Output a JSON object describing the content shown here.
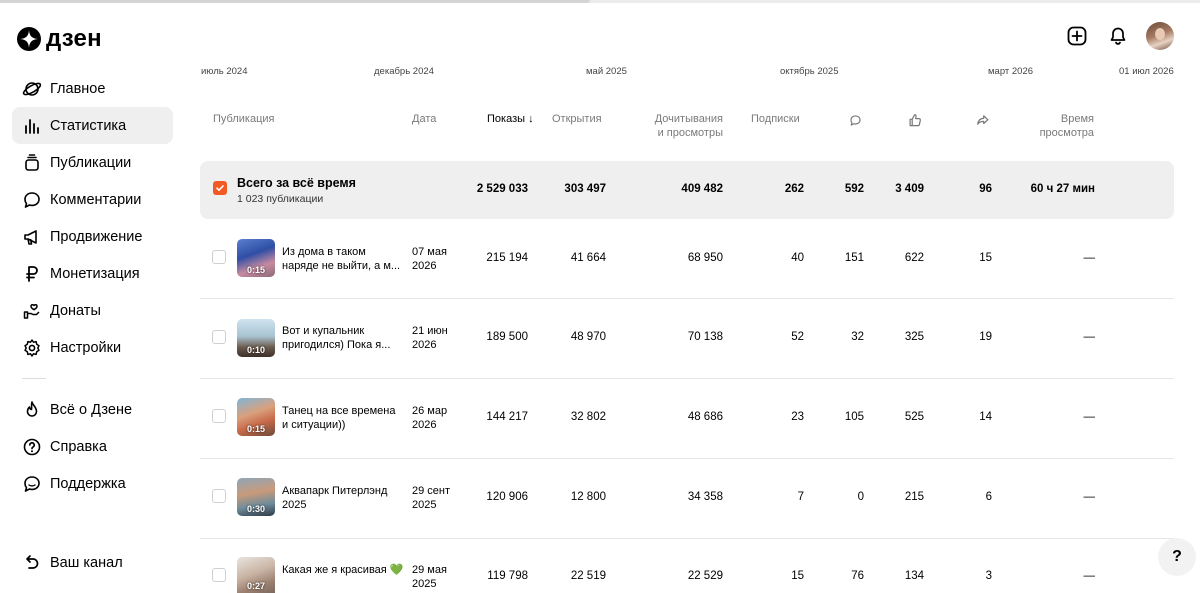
{
  "brand": {
    "name": "дзен"
  },
  "sidebar": {
    "items": [
      {
        "label": "Главное",
        "icon": "planet-icon"
      },
      {
        "label": "Статистика",
        "icon": "bar-chart-icon",
        "active": true
      },
      {
        "label": "Публикации",
        "icon": "publications-icon"
      },
      {
        "label": "Комментарии",
        "icon": "comment-icon"
      },
      {
        "label": "Продвижение",
        "icon": "megaphone-icon"
      },
      {
        "label": "Монетизация",
        "icon": "ruble-icon"
      },
      {
        "label": "Донаты",
        "icon": "donate-icon"
      },
      {
        "label": "Настройки",
        "icon": "gear-icon"
      }
    ],
    "secondary": [
      {
        "label": "Всё о Дзене",
        "icon": "flame-icon"
      },
      {
        "label": "Справка",
        "icon": "help-circle-icon"
      },
      {
        "label": "Поддержка",
        "icon": "chat-icon"
      }
    ],
    "channel": {
      "label": "Ваш канал",
      "icon": "back-arrow-icon"
    }
  },
  "timeline": [
    "июль 2024",
    "декабрь 2024",
    "май 2025",
    "октябрь 2025",
    "март 2026",
    "01 июл 2026"
  ],
  "table": {
    "headers": {
      "publication": "Публикация",
      "date": "Дата",
      "shows": "Показы",
      "opens": "Открытия",
      "reads_l1": "Дочитывания",
      "reads_l2": "и просмотры",
      "subs": "Подписки",
      "time_l1": "Время",
      "time_l2": "просмотра"
    },
    "summary": {
      "title": "Всего за всё время",
      "subtitle": "1 023 публикации",
      "shows": "2 529 033",
      "opens": "303 497",
      "reads": "409 482",
      "subs": "262",
      "comments": "592",
      "likes": "3 409",
      "shares": "96",
      "time": "60 ч 27 мин"
    },
    "rows": [
      {
        "title": "Из дома в таком наряде не выйти, а м...",
        "date_l1": "07 мая",
        "date_l2": "2026",
        "duration": "0:15",
        "shows": "215 194",
        "opens": "41 664",
        "reads": "68 950",
        "subs": "40",
        "comments": "151",
        "likes": "622",
        "shares": "15",
        "time": "—"
      },
      {
        "title": "Вот и купальник пригодился) Пока я...",
        "date_l1": "21 июн",
        "date_l2": "2026",
        "duration": "0:10",
        "shows": "189 500",
        "opens": "48 970",
        "reads": "70 138",
        "subs": "52",
        "comments": "32",
        "likes": "325",
        "shares": "19",
        "time": "—"
      },
      {
        "title": "Танец на все времена и ситуации))",
        "date_l1": "26 мар",
        "date_l2": "2026",
        "duration": "0:15",
        "shows": "144 217",
        "opens": "32 802",
        "reads": "48 686",
        "subs": "23",
        "comments": "105",
        "likes": "525",
        "shares": "14",
        "time": "—"
      },
      {
        "title": "Аквапарк Питерлэнд 2025",
        "date_l1": "29 сент",
        "date_l2": "2025",
        "duration": "0:30",
        "shows": "120 906",
        "opens": "12 800",
        "reads": "34 358",
        "subs": "7",
        "comments": "0",
        "likes": "215",
        "shares": "6",
        "time": "—"
      },
      {
        "title": "Какая же я красивая 💚",
        "date_l1": "29 мая",
        "date_l2": "2025",
        "duration": "0:27",
        "shows": "119 798",
        "opens": "22 519",
        "reads": "22 529",
        "subs": "15",
        "comments": "76",
        "likes": "134",
        "shares": "3",
        "time": "—"
      }
    ]
  },
  "help": {
    "label": "?"
  }
}
